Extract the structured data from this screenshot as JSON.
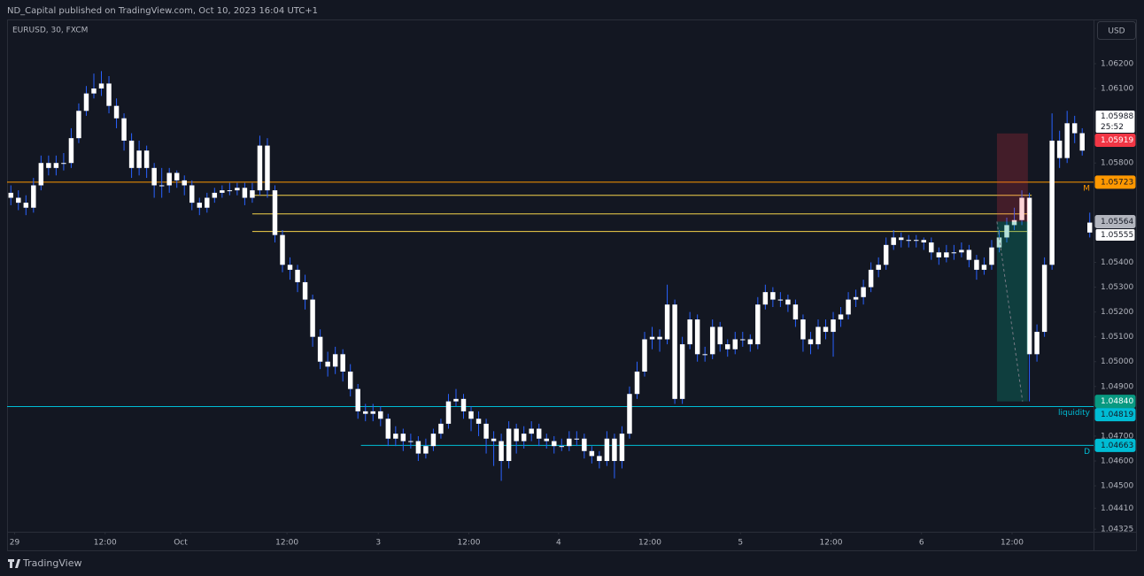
{
  "header": {
    "text": "ND_Capital published on TradingView.com, Oct 10, 2023 16:04 UTC+1"
  },
  "footer": {
    "brand": "TradingView"
  },
  "chart_data": {
    "type": "candlestick",
    "title": "EURUSD, 30, FXCM",
    "currency": "USD",
    "body_color": "#ffffff",
    "wick_color": "#2962ff",
    "xlim": [
      -0.5,
      143.5
    ],
    "xticks": [
      {
        "value": 0.5,
        "label": "29"
      },
      {
        "value": 12.5,
        "label": "12:00"
      },
      {
        "value": 22.5,
        "label": "Oct"
      },
      {
        "value": 36.6,
        "label": "12:00"
      },
      {
        "value": 48.7,
        "label": "3"
      },
      {
        "value": 60.7,
        "label": "12:00"
      },
      {
        "value": 72.6,
        "label": "4"
      },
      {
        "value": 84.7,
        "label": "12:00"
      },
      {
        "value": 96.7,
        "label": "5"
      },
      {
        "value": 108.7,
        "label": "12:00"
      },
      {
        "value": 120.7,
        "label": "6"
      },
      {
        "value": 132.7,
        "label": "12:00"
      }
    ],
    "ylim": [
      1.04315,
      1.06378
    ],
    "yticks": [
      {
        "value": 1.062,
        "label": "1.06200"
      },
      {
        "value": 1.061,
        "label": "1.06100"
      },
      {
        "value": 1.058,
        "label": "1.05800"
      },
      {
        "value": 1.054,
        "label": "1.05400"
      },
      {
        "value": 1.053,
        "label": "1.05300"
      },
      {
        "value": 1.052,
        "label": "1.05200"
      },
      {
        "value": 1.051,
        "label": "1.05100"
      },
      {
        "value": 1.05,
        "label": "1.05000"
      },
      {
        "value": 1.049,
        "label": "1.04900"
      },
      {
        "value": 1.047,
        "label": "1.04700"
      },
      {
        "value": 1.046,
        "label": "1.04600"
      },
      {
        "value": 1.045,
        "label": "1.04500"
      },
      {
        "value": 1.0441,
        "label": "1.04410"
      },
      {
        "value": 1.04325,
        "label": "1.04325"
      }
    ],
    "open": [
      1.0568,
      1.0566,
      1.0564,
      1.0562,
      1.0571,
      1.058,
      1.0578,
      1.058,
      1.058,
      1.059,
      1.0601,
      1.0608,
      1.061,
      1.0612,
      1.0603,
      1.0598,
      1.0589,
      1.0578,
      1.0585,
      1.0578,
      1.0571,
      1.0571,
      1.0576,
      1.0573,
      1.0571,
      1.0564,
      1.0562,
      1.0566,
      1.0568,
      1.0569,
      1.0569,
      1.057,
      1.0566,
      1.0569,
      1.0587,
      1.0569,
      1.0551,
      1.0539,
      1.0537,
      1.0532,
      1.0525,
      1.051,
      1.05,
      1.0498,
      1.0503,
      1.0496,
      1.0489,
      1.048,
      1.0479,
      1.048,
      1.0477,
      1.0469,
      1.0471,
      1.0468,
      1.0468,
      1.0463,
      1.0466,
      1.0471,
      1.0475,
      1.0484,
      1.0485,
      1.048,
      1.0477,
      1.0475,
      1.0469,
      1.0468,
      1.046,
      1.0473,
      1.0468,
      1.0471,
      1.0473,
      1.0469,
      1.0468,
      1.0466,
      1.0466,
      1.0469,
      1.0469,
      1.0464,
      1.0462,
      1.046,
      1.0469,
      1.046,
      1.0471,
      1.0487,
      1.0496,
      1.0509,
      1.051,
      1.0509,
      1.0523,
      1.0485,
      1.0507,
      1.0517,
      1.0503,
      1.0503,
      1.0514,
      1.0507,
      1.0505,
      1.0509,
      1.0509,
      1.0507,
      1.0523,
      1.0528,
      1.0525,
      1.0525,
      1.0523,
      1.0517,
      1.0509,
      1.0507,
      1.0514,
      1.0512,
      1.0517,
      1.0519,
      1.0525,
      1.0526,
      1.053,
      1.0537,
      1.0539,
      1.0547,
      1.055,
      1.0549,
      1.0549,
      1.0549,
      1.0548,
      1.0544,
      1.0542,
      1.0544,
      1.0544,
      1.0545,
      1.0541,
      1.0537,
      1.0539,
      1.0546,
      1.055,
      1.0555,
      1.0557,
      1.0566,
      1.0503,
      1.0512,
      1.0539,
      1.0589,
      1.0582,
      1.0596,
      1.0592,
      1.0552
    ],
    "high": [
      1.0571,
      1.0569,
      1.0567,
      1.0574,
      1.0583,
      1.0583,
      1.0583,
      1.0584,
      1.0594,
      1.0604,
      1.0611,
      1.0616,
      1.0617,
      1.0615,
      1.0606,
      1.06,
      1.0592,
      1.0589,
      1.0587,
      1.058,
      1.0578,
      1.0578,
      1.0577,
      1.0575,
      1.0573,
      1.0566,
      1.0568,
      1.057,
      1.0571,
      1.0572,
      1.0572,
      1.0572,
      1.0572,
      1.0591,
      1.059,
      1.0571,
      1.0553,
      1.0542,
      1.0539,
      1.0535,
      1.0527,
      1.0513,
      1.0504,
      1.0506,
      1.0505,
      1.0499,
      1.0491,
      1.0483,
      1.0483,
      1.0482,
      1.0479,
      1.0474,
      1.0473,
      1.0471,
      1.047,
      1.0469,
      1.0473,
      1.0477,
      1.0487,
      1.0489,
      1.0487,
      1.0482,
      1.048,
      1.0477,
      1.0472,
      1.0471,
      1.0476,
      1.0475,
      1.0474,
      1.0476,
      1.0475,
      1.0471,
      1.047,
      1.0469,
      1.0472,
      1.0472,
      1.0471,
      1.0466,
      1.0464,
      1.0472,
      1.0471,
      1.0474,
      1.049,
      1.05,
      1.0512,
      1.0514,
      1.0513,
      1.0531,
      1.0525,
      1.051,
      1.052,
      1.0519,
      1.0506,
      1.0517,
      1.0516,
      1.0509,
      1.0512,
      1.0512,
      1.0511,
      1.0526,
      1.0531,
      1.053,
      1.0528,
      1.0527,
      1.0525,
      1.0519,
      1.0512,
      1.0517,
      1.0517,
      1.052,
      1.0522,
      1.0528,
      1.0529,
      1.0533,
      1.054,
      1.0542,
      1.055,
      1.0553,
      1.0552,
      1.0551,
      1.0551,
      1.055,
      1.055,
      1.0546,
      1.0547,
      1.0547,
      1.0548,
      1.0547,
      1.0543,
      1.0542,
      1.0549,
      1.0553,
      1.0558,
      1.0562,
      1.0569,
      1.0568,
      1.0515,
      1.0542,
      1.06,
      1.0593,
      1.0601,
      1.0599,
      1.0594,
      1.056
    ],
    "low": [
      1.0563,
      1.0561,
      1.0559,
      1.056,
      1.0569,
      1.0575,
      1.0575,
      1.0577,
      1.0578,
      1.0588,
      1.0599,
      1.0606,
      1.0607,
      1.06,
      1.0594,
      1.0585,
      1.0574,
      1.0575,
      1.0574,
      1.0566,
      1.0566,
      1.0568,
      1.057,
      1.0567,
      1.0561,
      1.0559,
      1.056,
      1.0564,
      1.0566,
      1.0567,
      1.0567,
      1.0563,
      1.0564,
      1.0567,
      1.0566,
      1.0548,
      1.0536,
      1.0533,
      1.0528,
      1.0521,
      1.0506,
      1.0497,
      1.0494,
      1.0495,
      1.0492,
      1.0486,
      1.0477,
      1.0476,
      1.0476,
      1.0474,
      1.0466,
      1.0466,
      1.0464,
      1.0465,
      1.046,
      1.0461,
      1.0464,
      1.0469,
      1.0473,
      1.0482,
      1.0477,
      1.0472,
      1.047,
      1.0463,
      1.0458,
      1.0452,
      1.0457,
      1.0463,
      1.0465,
      1.0468,
      1.0466,
      1.0465,
      1.0463,
      1.0464,
      1.0464,
      1.0466,
      1.0461,
      1.0459,
      1.0457,
      1.0458,
      1.0453,
      1.0457,
      1.0469,
      1.0485,
      1.0494,
      1.0505,
      1.0504,
      1.0507,
      1.0483,
      1.0483,
      1.0505,
      1.05,
      1.05,
      1.0501,
      1.0504,
      1.0502,
      1.0503,
      1.0506,
      1.0504,
      1.0505,
      1.0521,
      1.0522,
      1.0522,
      1.052,
      1.0514,
      1.0504,
      1.0503,
      1.0505,
      1.0509,
      1.0502,
      1.0514,
      1.0517,
      1.0522,
      1.0523,
      1.0528,
      1.0534,
      1.0537,
      1.0545,
      1.0546,
      1.0546,
      1.0546,
      1.0545,
      1.0541,
      1.0539,
      1.054,
      1.0541,
      1.0542,
      1.0538,
      1.0533,
      1.0535,
      1.0537,
      1.0544,
      1.0548,
      1.0553,
      1.0555,
      1.0484,
      1.05,
      1.051,
      1.0537,
      1.0578,
      1.058,
      1.0588,
      1.0583,
      1.055
    ],
    "close": [
      1.0566,
      1.0564,
      1.0562,
      1.0571,
      1.058,
      1.0578,
      1.058,
      1.058,
      1.059,
      1.0601,
      1.0608,
      1.061,
      1.0612,
      1.0603,
      1.0598,
      1.0589,
      1.0578,
      1.0585,
      1.0578,
      1.0571,
      1.0571,
      1.0576,
      1.0573,
      1.0571,
      1.0564,
      1.0562,
      1.0566,
      1.0568,
      1.0569,
      1.0569,
      1.057,
      1.0566,
      1.0569,
      1.0587,
      1.0569,
      1.0551,
      1.0539,
      1.0537,
      1.0532,
      1.0525,
      1.051,
      1.05,
      1.0498,
      1.0503,
      1.0496,
      1.0489,
      1.048,
      1.0479,
      1.048,
      1.0477,
      1.0469,
      1.0471,
      1.0468,
      1.0468,
      1.0463,
      1.0466,
      1.0471,
      1.0475,
      1.0484,
      1.0485,
      1.048,
      1.0477,
      1.0475,
      1.0469,
      1.0468,
      1.046,
      1.0473,
      1.0468,
      1.0471,
      1.0473,
      1.0469,
      1.0468,
      1.0466,
      1.0466,
      1.0469,
      1.0469,
      1.0464,
      1.0462,
      1.046,
      1.0469,
      1.046,
      1.0471,
      1.0487,
      1.0496,
      1.0509,
      1.051,
      1.0509,
      1.0523,
      1.0485,
      1.0507,
      1.0517,
      1.0503,
      1.0503,
      1.0514,
      1.0507,
      1.0505,
      1.0509,
      1.0509,
      1.0507,
      1.0523,
      1.0528,
      1.0525,
      1.0525,
      1.0523,
      1.0517,
      1.0509,
      1.0507,
      1.0514,
      1.0512,
      1.0517,
      1.0519,
      1.0525,
      1.0526,
      1.053,
      1.0537,
      1.0539,
      1.0547,
      1.055,
      1.0549,
      1.0549,
      1.0549,
      1.0548,
      1.0544,
      1.0542,
      1.0544,
      1.0544,
      1.0545,
      1.0541,
      1.0537,
      1.0539,
      1.0546,
      1.055,
      1.0555,
      1.0557,
      1.0566,
      1.0503,
      1.0512,
      1.0539,
      1.0589,
      1.0582,
      1.0596,
      1.0592,
      1.0585,
      1.0556
    ],
    "lines": [
      {
        "value": 1.05723,
        "color": "#ff9800",
        "text": "M"
      },
      {
        "value": 1.0567,
        "color": "#f5d34a",
        "x_start": 32,
        "x_end": 135.3
      },
      {
        "value": 1.05595,
        "color": "#f5d34a",
        "x_start": 32,
        "x_end": 135.3
      },
      {
        "value": 1.05524,
        "color": "#f5d34a",
        "x_start": 32,
        "x_end": 135.3
      },
      {
        "value": 1.04819,
        "color": "#00bcd4",
        "text": "liquidity"
      },
      {
        "value": 1.04663,
        "color": "#00bcd4",
        "x_start": 46.4,
        "text": "D"
      }
    ],
    "position": {
      "entry": 1.05564,
      "stop": 1.05919,
      "target": 1.0484,
      "x_start": 130.7,
      "x_end": 134.8,
      "stop_color": "#f23645",
      "target_color": "#089981"
    },
    "price_labels": [
      {
        "value": 1.05988,
        "label": "1.05988",
        "sub": "25:52",
        "bg": "#ffffff",
        "fg": "#131722"
      },
      {
        "value": 1.05919,
        "label": "1.05919",
        "bg": "#f23645",
        "fg": "#ffffff"
      },
      {
        "value": 1.05723,
        "label": "1.05723",
        "bg": "#ff9800",
        "fg": "#131722"
      },
      {
        "value": 1.05564,
        "label": "1.05564",
        "bg": "#b2b5be",
        "fg": "#131722"
      },
      {
        "value": 1.05555,
        "label": "1.05555",
        "bg": "#ffffff",
        "fg": "#131722"
      },
      {
        "value": 1.0484,
        "label": "1.04840",
        "bg": "#089981",
        "fg": "#ffffff"
      },
      {
        "value": 1.04819,
        "label": "1.04819",
        "bg": "#00bcd4",
        "fg": "#131722"
      },
      {
        "value": 1.04663,
        "label": "1.04663",
        "bg": "#00bcd4",
        "fg": "#131722"
      }
    ]
  }
}
